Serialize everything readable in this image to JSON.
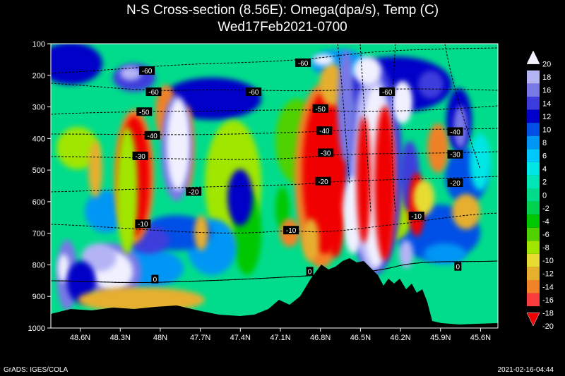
{
  "title": "N-S Cross-section (8.56E): Omega(dpa/s), Temp (C)",
  "subtitle": "Wed17Feb2021-0700",
  "footer_left": "GrADS: IGES/COLA",
  "footer_right": "2021-02-16-04:44",
  "chart_data": {
    "type": "heatmap",
    "title": "N-S Cross-section (8.56E): Omega(dpa/s), Temp (C)",
    "subtitle": "Wed17Feb2021-0700",
    "x_ticks": [
      "48.6N",
      "48.3N",
      "48N",
      "47.7N",
      "47.4N",
      "47.1N",
      "46.8N",
      "46.5N",
      "46.2N",
      "45.9N",
      "45.6N"
    ],
    "x_tick_values": [
      48.6,
      48.3,
      48.0,
      47.7,
      47.4,
      47.1,
      46.8,
      46.5,
      46.2,
      45.9,
      45.6
    ],
    "xlim": [
      48.82,
      45.47
    ],
    "y_ticks": [
      100,
      200,
      300,
      400,
      500,
      600,
      700,
      800,
      900,
      1000
    ],
    "ylim": [
      100,
      1000
    ],
    "y_reversed": true,
    "colorbar_levels": [
      20,
      18,
      16,
      14,
      12,
      10,
      8,
      6,
      4,
      2,
      0,
      -2,
      -4,
      -6,
      -8,
      -10,
      -12,
      -14,
      -16,
      -18,
      -20
    ],
    "colorbar_colors": [
      "#f0f0ff",
      "#b4b4f5",
      "#7878e6",
      "#3c3cdc",
      "#0000c8",
      "#0050e6",
      "#0096f5",
      "#00c8ff",
      "#00e6e6",
      "#00e6b4",
      "#00dc8c",
      "#00d250",
      "#00c800",
      "#50d200",
      "#a0e600",
      "#e6dc32",
      "#e6af2d",
      "#f08228",
      "#fa3c3c",
      "#f00000"
    ],
    "temperature_contours": [
      {
        "level": -60,
        "label": "-60",
        "labels_at": [
          [
            48.1,
            185
          ],
          [
            48.05,
            252
          ],
          [
            47.3,
            252
          ],
          [
            46.93,
            160
          ],
          [
            46.3,
            252
          ]
        ]
      },
      {
        "level": -50,
        "label": "-50",
        "labels_at": [
          [
            48.12,
            315
          ],
          [
            46.8,
            305
          ]
        ]
      },
      {
        "level": -40,
        "label": "-40",
        "labels_at": [
          [
            48.06,
            390
          ],
          [
            46.77,
            375
          ],
          [
            45.79,
            378
          ]
        ]
      },
      {
        "level": -30,
        "label": "-30",
        "labels_at": [
          [
            48.15,
            455
          ],
          [
            46.76,
            445
          ],
          [
            45.79,
            450
          ]
        ]
      },
      {
        "level": -20,
        "label": "-20",
        "labels_at": [
          [
            47.75,
            568
          ],
          [
            46.78,
            535
          ],
          [
            45.79,
            540
          ]
        ]
      },
      {
        "level": -10,
        "label": "-10",
        "labels_at": [
          [
            48.13,
            670
          ],
          [
            47.02,
            690
          ],
          [
            46.08,
            645
          ]
        ]
      },
      {
        "level": 0,
        "label": "0",
        "labels_at": [
          [
            48.04,
            845
          ],
          [
            46.88,
            820
          ],
          [
            45.77,
            805
          ]
        ]
      }
    ]
  }
}
